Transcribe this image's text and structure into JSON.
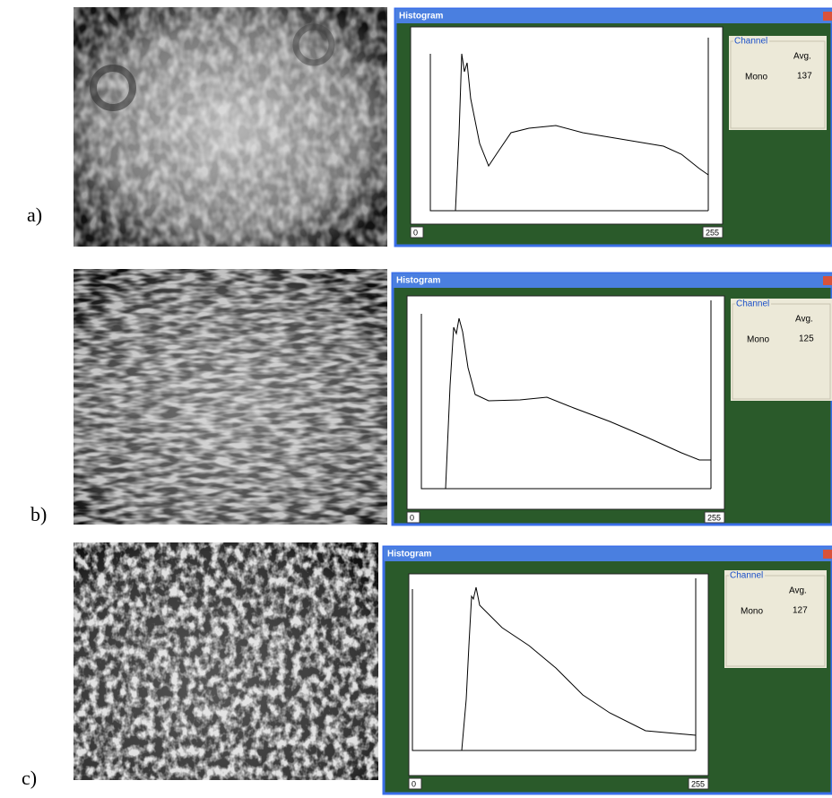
{
  "panels": [
    {
      "label": "a)",
      "window_title": "Histogram",
      "x_min_label": 0,
      "x_max_label": 255,
      "channel": {
        "title": "Channel",
        "column": "Avg.",
        "row": "Mono",
        "value": 137
      }
    },
    {
      "label": "b)",
      "window_title": "Histogram",
      "x_min_label": 0,
      "x_max_label": 255,
      "channel": {
        "title": "Channel",
        "column": "Avg.",
        "row": "Mono",
        "value": 125
      }
    },
    {
      "label": "c)",
      "window_title": "Histogram",
      "x_min_label": 0,
      "x_max_label": 255,
      "channel": {
        "title": "Channel",
        "column": "Avg.",
        "row": "Mono",
        "value": 127
      }
    }
  ]
}
